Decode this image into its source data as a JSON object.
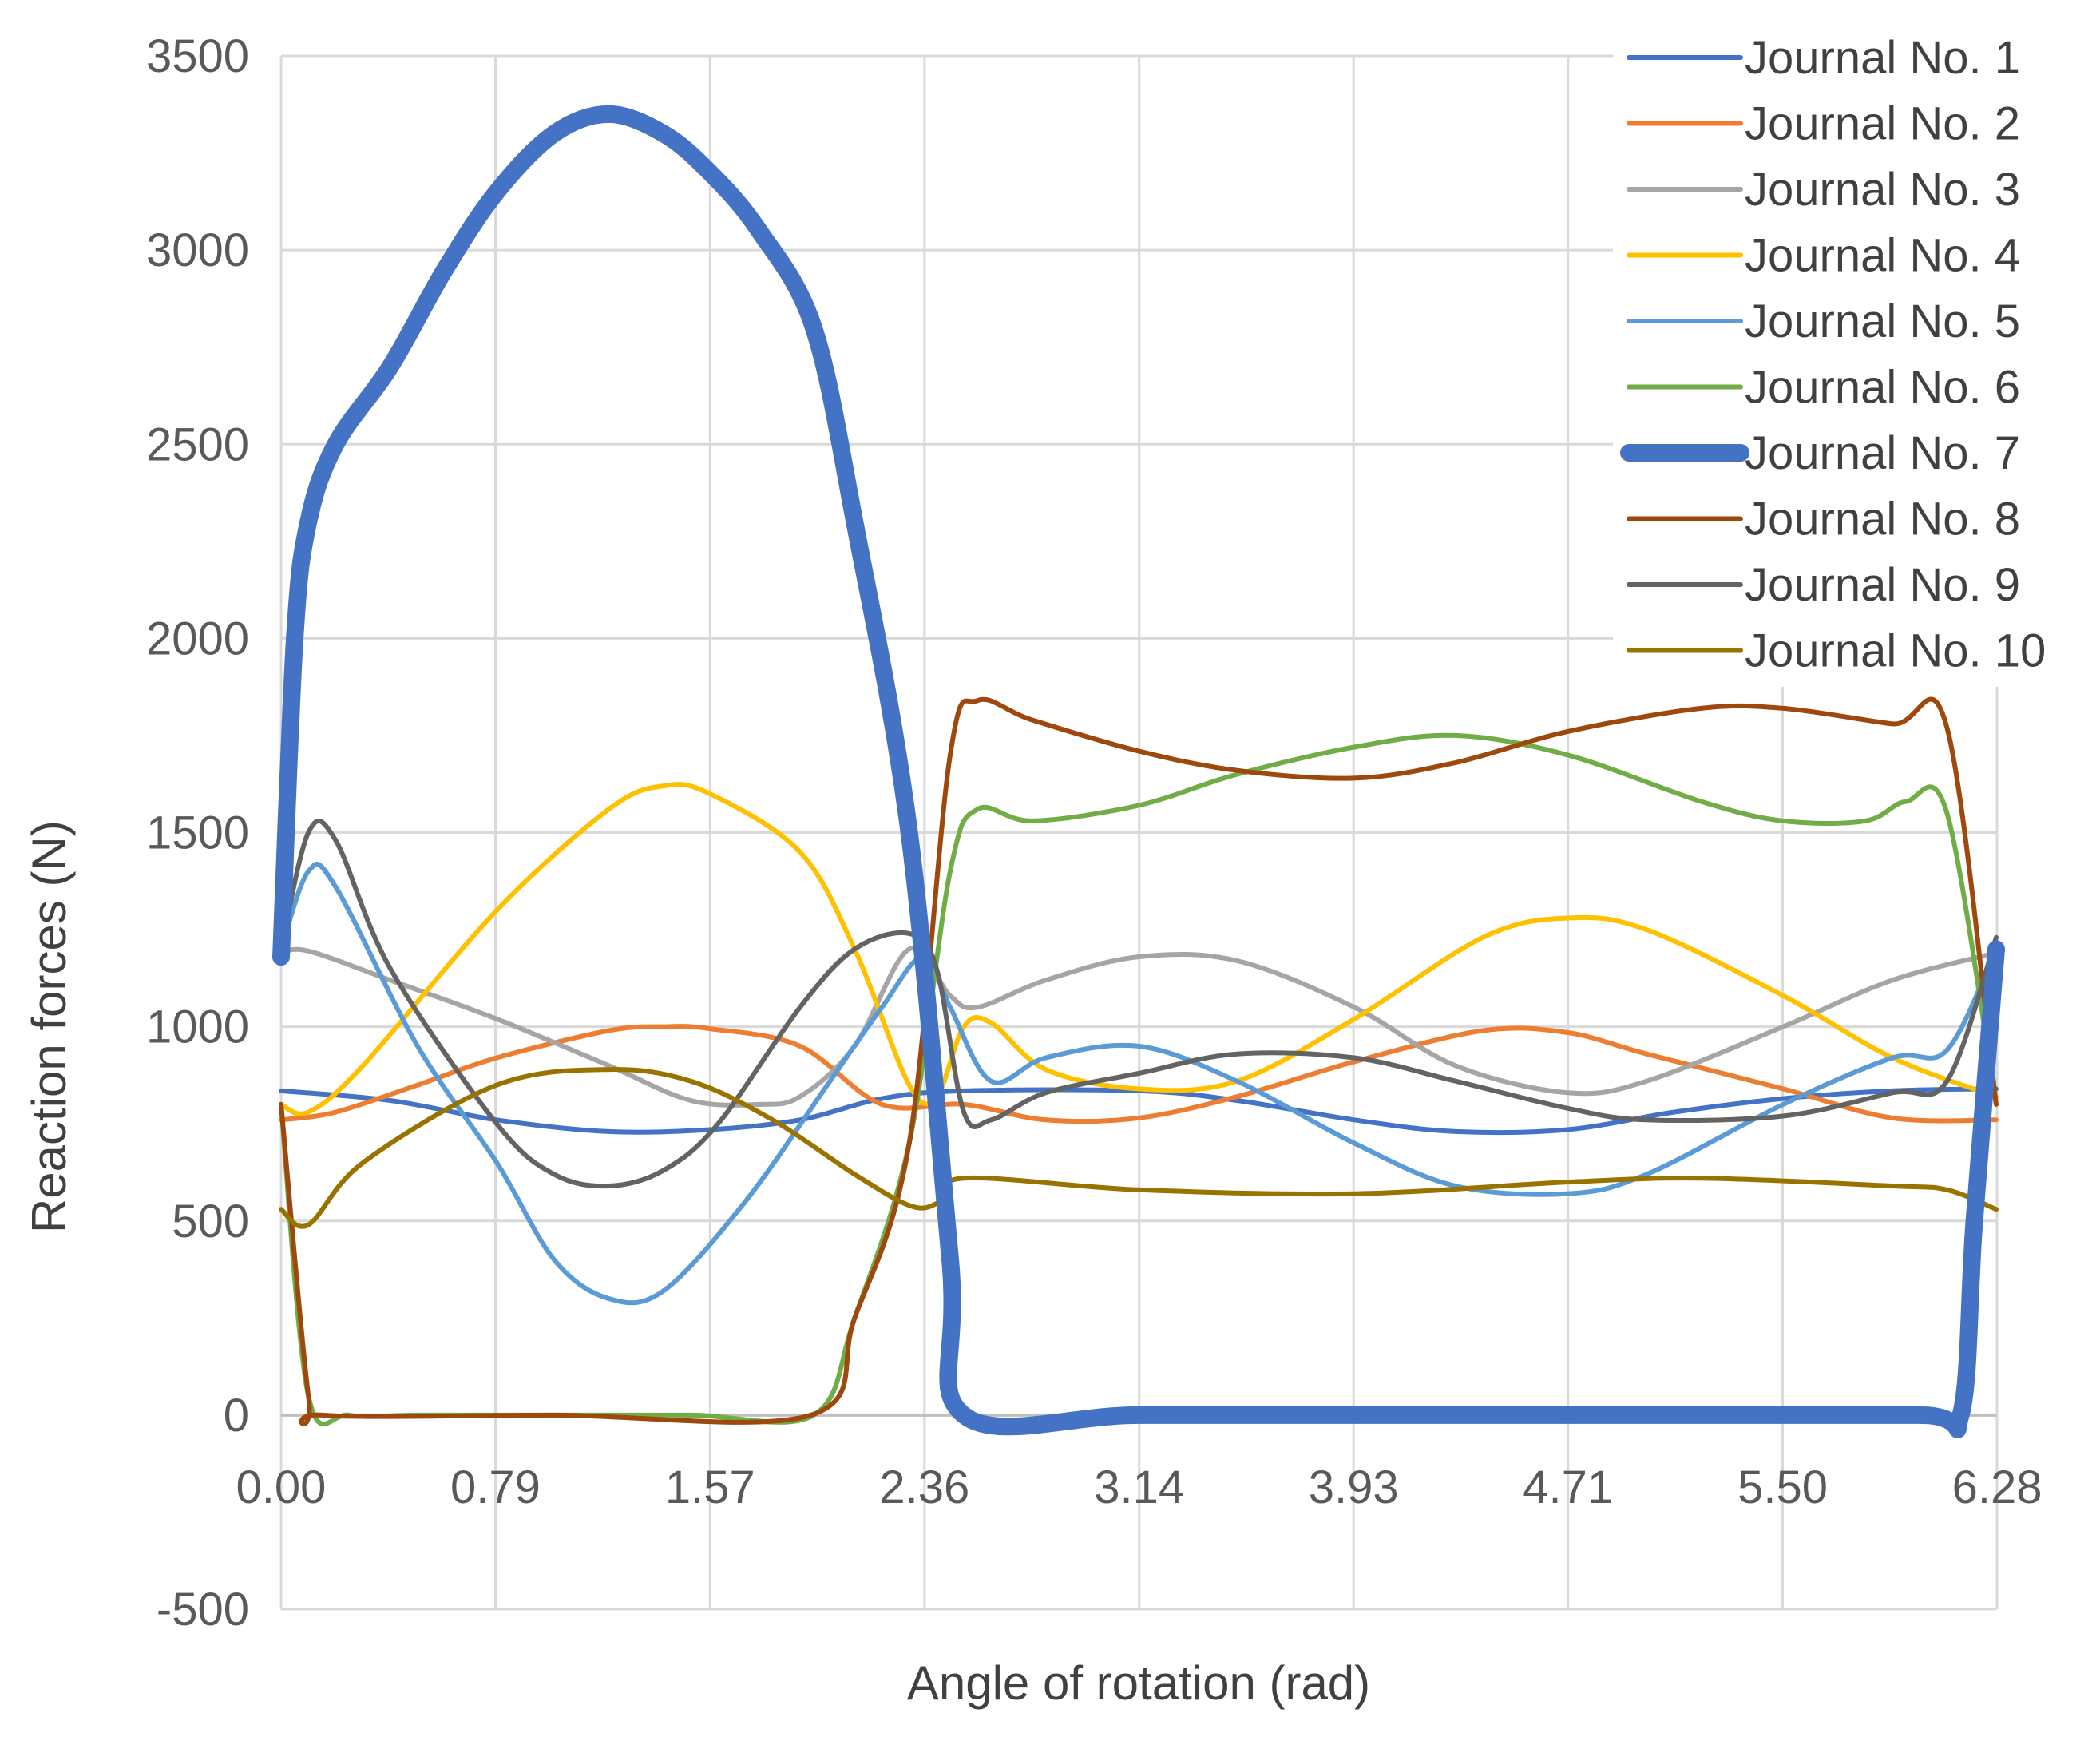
{
  "chart_data": {
    "type": "line",
    "title": "",
    "xlabel": "Angle of rotation (rad)",
    "ylabel": "Reaction forces (N)",
    "xlim": [
      0,
      6.28
    ],
    "ylim": [
      -500,
      3500
    ],
    "xticks": [
      0,
      0.785,
      1.571,
      2.356,
      3.142,
      3.927,
      4.712,
      5.498,
      6.283
    ],
    "xtick_labels": [
      "0.00",
      "0.79",
      "1.57",
      "2.36",
      "3.14",
      "3.93",
      "4.71",
      "5.50",
      "6.28"
    ],
    "yticks": [
      -500,
      0,
      500,
      1000,
      1500,
      2000,
      2500,
      3000,
      3500
    ],
    "ytick_labels": [
      "-500",
      "0",
      "500",
      "1000",
      "1500",
      "2000",
      "2500",
      "3000",
      "3500"
    ],
    "grid": true,
    "legend_position": "top-right",
    "series": [
      {
        "name": "Journal No. 1",
        "color": "#4472C4",
        "width": 3,
        "points": [
          [
            0,
            835
          ],
          [
            0.4,
            810
          ],
          [
            0.79,
            760
          ],
          [
            1.2,
            730
          ],
          [
            1.57,
            735
          ],
          [
            1.9,
            760
          ],
          [
            2.2,
            815
          ],
          [
            2.5,
            835
          ],
          [
            3.14,
            835
          ],
          [
            3.5,
            810
          ],
          [
            3.93,
            760
          ],
          [
            4.3,
            730
          ],
          [
            4.71,
            735
          ],
          [
            5.1,
            780
          ],
          [
            5.5,
            815
          ],
          [
            5.9,
            835
          ],
          [
            6.28,
            840
          ]
        ]
      },
      {
        "name": "Journal No. 2",
        "color": "#ED7D31",
        "width": 3,
        "points": [
          [
            0,
            760
          ],
          [
            0.2,
            780
          ],
          [
            0.5,
            850
          ],
          [
            0.79,
            920
          ],
          [
            1.2,
            990
          ],
          [
            1.4,
            1000
          ],
          [
            1.57,
            995
          ],
          [
            1.9,
            950
          ],
          [
            2.2,
            800
          ],
          [
            2.5,
            800
          ],
          [
            2.8,
            760
          ],
          [
            3.14,
            765
          ],
          [
            3.5,
            820
          ],
          [
            3.93,
            910
          ],
          [
            4.4,
            990
          ],
          [
            4.71,
            985
          ],
          [
            5.0,
            930
          ],
          [
            5.5,
            840
          ],
          [
            5.9,
            765
          ],
          [
            6.28,
            760
          ]
        ]
      },
      {
        "name": "Journal No. 3",
        "color": "#A5A5A5",
        "width": 3,
        "points": [
          [
            0,
            1190
          ],
          [
            0.1,
            1195
          ],
          [
            0.4,
            1120
          ],
          [
            0.79,
            1020
          ],
          [
            1.2,
            900
          ],
          [
            1.5,
            810
          ],
          [
            1.75,
            800
          ],
          [
            1.9,
            820
          ],
          [
            2.1,
            950
          ],
          [
            2.3,
            1200
          ],
          [
            2.45,
            1080
          ],
          [
            2.55,
            1050
          ],
          [
            2.8,
            1120
          ],
          [
            3.14,
            1180
          ],
          [
            3.5,
            1170
          ],
          [
            3.93,
            1050
          ],
          [
            4.3,
            900
          ],
          [
            4.71,
            830
          ],
          [
            5.0,
            860
          ],
          [
            5.5,
            1000
          ],
          [
            5.9,
            1120
          ],
          [
            6.28,
            1190
          ]
        ]
      },
      {
        "name": "Journal No. 4",
        "color": "#FFC000",
        "width": 3,
        "points": [
          [
            0,
            800
          ],
          [
            0.1,
            780
          ],
          [
            0.3,
            900
          ],
          [
            0.79,
            1300
          ],
          [
            1.2,
            1560
          ],
          [
            1.4,
            1620
          ],
          [
            1.57,
            1600
          ],
          [
            1.9,
            1450
          ],
          [
            2.1,
            1200
          ],
          [
            2.3,
            850
          ],
          [
            2.4,
            820
          ],
          [
            2.5,
            1000
          ],
          [
            2.6,
            1010
          ],
          [
            2.8,
            890
          ],
          [
            3.14,
            840
          ],
          [
            3.5,
            860
          ],
          [
            3.93,
            1020
          ],
          [
            4.4,
            1230
          ],
          [
            4.71,
            1280
          ],
          [
            5.0,
            1250
          ],
          [
            5.5,
            1080
          ],
          [
            5.9,
            920
          ],
          [
            6.28,
            820
          ]
        ]
      },
      {
        "name": "Journal No. 5",
        "color": "#5B9BD5",
        "width": 3,
        "points": [
          [
            0,
            1200
          ],
          [
            0.1,
            1400
          ],
          [
            0.2,
            1360
          ],
          [
            0.5,
            950
          ],
          [
            0.79,
            650
          ],
          [
            1.0,
            400
          ],
          [
            1.2,
            300
          ],
          [
            1.4,
            320
          ],
          [
            1.7,
            550
          ],
          [
            2.0,
            850
          ],
          [
            2.2,
            1050
          ],
          [
            2.35,
            1180
          ],
          [
            2.45,
            1050
          ],
          [
            2.6,
            860
          ],
          [
            2.8,
            920
          ],
          [
            3.14,
            950
          ],
          [
            3.5,
            860
          ],
          [
            3.93,
            700
          ],
          [
            4.3,
            590
          ],
          [
            4.71,
            570
          ],
          [
            5.0,
            620
          ],
          [
            5.5,
            800
          ],
          [
            5.9,
            920
          ],
          [
            6.1,
            940
          ],
          [
            6.28,
            1200
          ]
        ]
      },
      {
        "name": "Journal No. 6",
        "color": "#70AD47",
        "width": 3,
        "points": [
          [
            0,
            800
          ],
          [
            0.1,
            50
          ],
          [
            0.25,
            0
          ],
          [
            0.5,
            0
          ],
          [
            1.0,
            0
          ],
          [
            1.5,
            0
          ],
          [
            1.95,
            0
          ],
          [
            2.1,
            250
          ],
          [
            2.3,
            700
          ],
          [
            2.45,
            1400
          ],
          [
            2.55,
            1560
          ],
          [
            2.75,
            1530
          ],
          [
            3.14,
            1570
          ],
          [
            3.5,
            1650
          ],
          [
            3.93,
            1720
          ],
          [
            4.3,
            1750
          ],
          [
            4.71,
            1700
          ],
          [
            5.2,
            1580
          ],
          [
            5.5,
            1530
          ],
          [
            5.8,
            1530
          ],
          [
            5.95,
            1580
          ],
          [
            6.1,
            1550
          ],
          [
            6.28,
            800
          ]
        ]
      },
      {
        "name": "Journal No. 7",
        "color": "#4472C4",
        "width": 11,
        "points": [
          [
            0,
            1180
          ],
          [
            0.05,
            2000
          ],
          [
            0.1,
            2300
          ],
          [
            0.2,
            2500
          ],
          [
            0.4,
            2700
          ],
          [
            0.6,
            2950
          ],
          [
            0.79,
            3150
          ],
          [
            1.0,
            3300
          ],
          [
            1.2,
            3350
          ],
          [
            1.4,
            3300
          ],
          [
            1.57,
            3200
          ],
          [
            1.75,
            3050
          ],
          [
            1.95,
            2800
          ],
          [
            2.1,
            2300
          ],
          [
            2.3,
            1500
          ],
          [
            2.45,
            400
          ],
          [
            2.5,
            0
          ],
          [
            3.14,
            0
          ],
          [
            4.0,
            0
          ],
          [
            5.0,
            0
          ],
          [
            6.0,
            0
          ],
          [
            6.15,
            0
          ],
          [
            6.2,
            500
          ],
          [
            6.28,
            1200
          ]
        ]
      },
      {
        "name": "Journal No. 8",
        "color": "#9E480E",
        "width": 3,
        "points": [
          [
            0,
            800
          ],
          [
            0.1,
            50
          ],
          [
            0.15,
            0
          ],
          [
            1.0,
            0
          ],
          [
            1.94,
            0
          ],
          [
            2.1,
            250
          ],
          [
            2.3,
            700
          ],
          [
            2.45,
            1700
          ],
          [
            2.55,
            1840
          ],
          [
            2.75,
            1790
          ],
          [
            3.14,
            1710
          ],
          [
            3.5,
            1660
          ],
          [
            3.93,
            1640
          ],
          [
            4.3,
            1680
          ],
          [
            4.71,
            1760
          ],
          [
            5.2,
            1820
          ],
          [
            5.5,
            1820
          ],
          [
            5.9,
            1780
          ],
          [
            6.1,
            1770
          ],
          [
            6.28,
            800
          ]
        ]
      },
      {
        "name": "Journal No. 9",
        "color": "#636363",
        "width": 3,
        "points": [
          [
            0,
            1200
          ],
          [
            0.1,
            1500
          ],
          [
            0.2,
            1480
          ],
          [
            0.4,
            1150
          ],
          [
            0.79,
            750
          ],
          [
            1.0,
            620
          ],
          [
            1.2,
            590
          ],
          [
            1.4,
            630
          ],
          [
            1.6,
            750
          ],
          [
            1.9,
            1050
          ],
          [
            2.1,
            1200
          ],
          [
            2.3,
            1240
          ],
          [
            2.4,
            1150
          ],
          [
            2.5,
            780
          ],
          [
            2.6,
            760
          ],
          [
            2.8,
            830
          ],
          [
            3.14,
            880
          ],
          [
            3.5,
            930
          ],
          [
            3.93,
            920
          ],
          [
            4.3,
            860
          ],
          [
            4.71,
            790
          ],
          [
            5.0,
            760
          ],
          [
            5.5,
            770
          ],
          [
            5.9,
            830
          ],
          [
            6.1,
            860
          ],
          [
            6.28,
            1230
          ]
        ]
      },
      {
        "name": "Journal No. 10",
        "color": "#997300",
        "width": 3,
        "points": [
          [
            0,
            530
          ],
          [
            0.1,
            490
          ],
          [
            0.3,
            650
          ],
          [
            0.79,
            850
          ],
          [
            1.2,
            890
          ],
          [
            1.5,
            860
          ],
          [
            1.8,
            760
          ],
          [
            2.1,
            620
          ],
          [
            2.3,
            540
          ],
          [
            2.4,
            545
          ],
          [
            2.5,
            610
          ],
          [
            3.14,
            580
          ],
          [
            3.93,
            570
          ],
          [
            4.71,
            600
          ],
          [
            5.2,
            610
          ],
          [
            5.9,
            590
          ],
          [
            6.1,
            580
          ],
          [
            6.28,
            530
          ]
        ]
      }
    ]
  }
}
